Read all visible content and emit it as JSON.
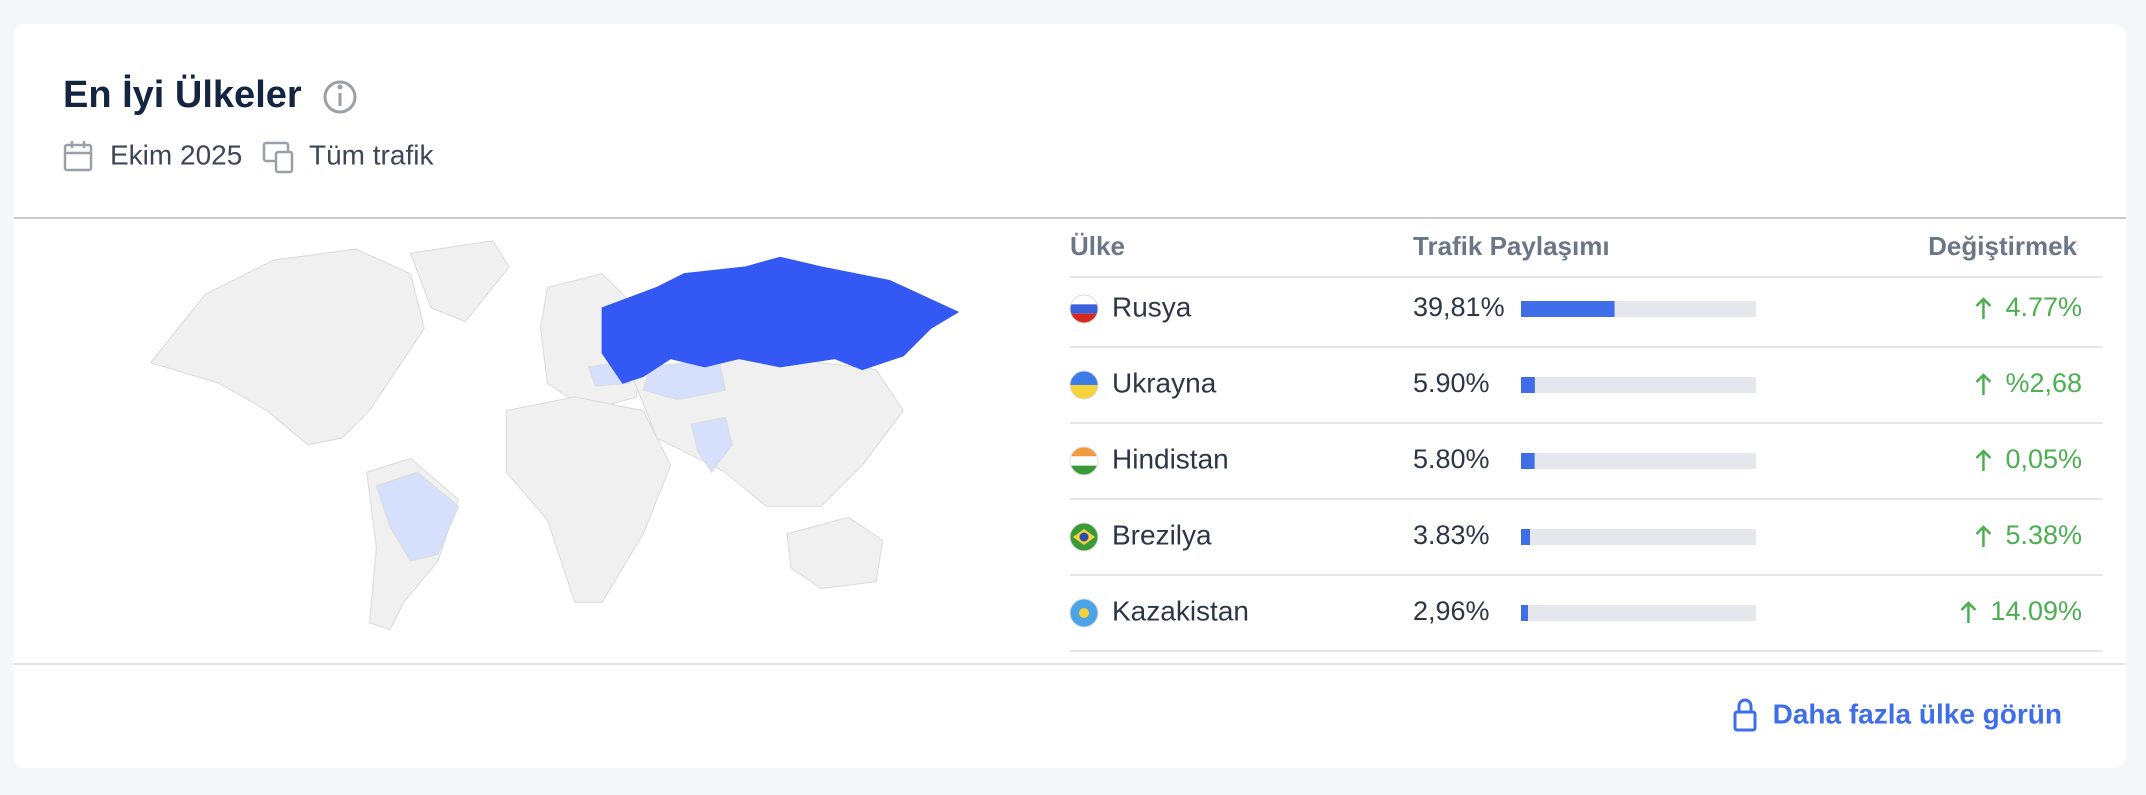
{
  "header": {
    "title": "En İyi Ülkeler",
    "period": "Ekim 2025",
    "traffic": "Tüm trafik"
  },
  "table": {
    "columns": [
      "Ülke",
      "Trafik Paylaşımı",
      "Değiştirmek"
    ],
    "rows": [
      {
        "country": "Rusya",
        "share": {
          "value": 39.81,
          "label": "39,81%"
        },
        "change": "4.77%"
      },
      {
        "country": "Ukrayna",
        "share": {
          "value": 5.9,
          "label": "5.90%"
        },
        "change": "%2,68"
      },
      {
        "country": "Hindistan",
        "share": {
          "value": 5.8,
          "label": "5.80%"
        },
        "change": "0,05%"
      },
      {
        "country": "Brezilya",
        "share": {
          "value": 3.83,
          "label": "3.83%"
        },
        "change": "5.38%"
      },
      {
        "country": "Kazakistan",
        "share": {
          "value": 2.96,
          "label": "2,96%"
        },
        "change": "14.09%"
      }
    ]
  },
  "footer": {
    "link": "Daha fazla ülke görün"
  }
}
